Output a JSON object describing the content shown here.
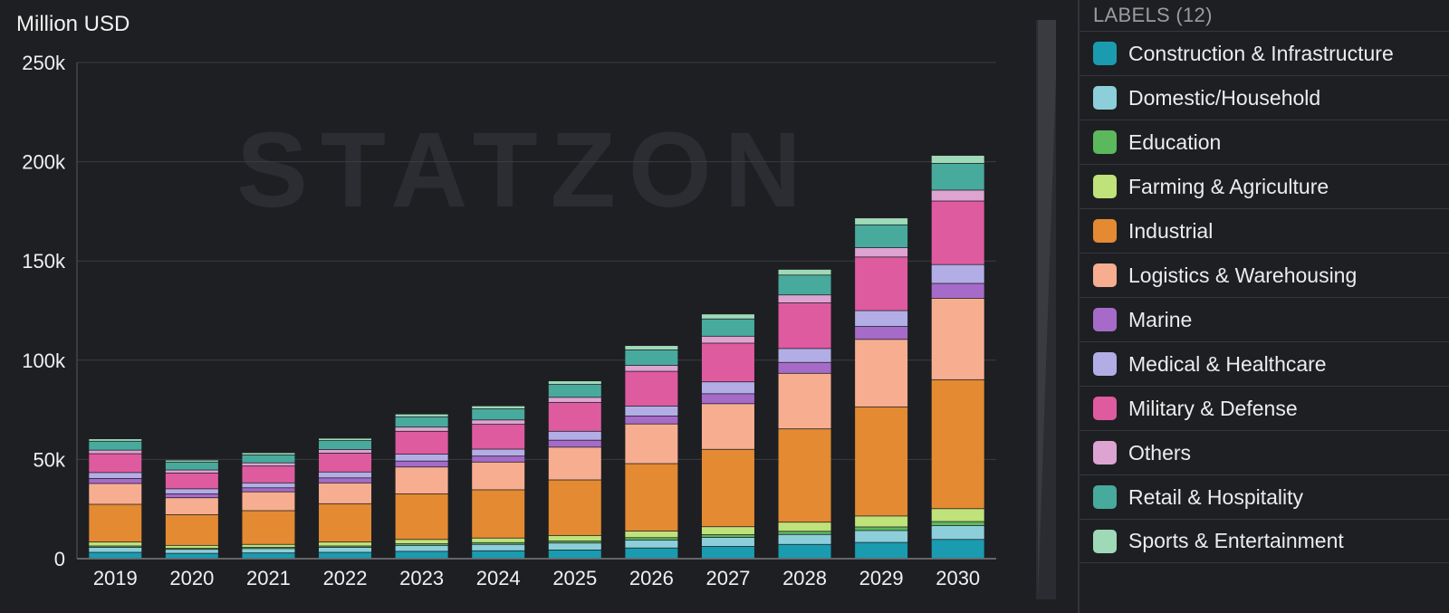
{
  "legend": {
    "title": "LABELS (12)"
  },
  "watermark": "STATZON",
  "chart_data": {
    "type": "bar",
    "stacked": true,
    "ylabel": "Million USD",
    "ylim": [
      0,
      250000
    ],
    "yticks": [
      "0",
      "50k",
      "100k",
      "150k",
      "200k",
      "250k"
    ],
    "ytick_values": [
      0,
      50000,
      100000,
      150000,
      200000,
      250000
    ],
    "categories": [
      "2019",
      "2020",
      "2021",
      "2022",
      "2023",
      "2024",
      "2025",
      "2026",
      "2027",
      "2028",
      "2029",
      "2030"
    ],
    "series": [
      {
        "name": "Construction & Infrastructure",
        "color": "#1a9bb0",
        "values": [
          3000,
          2500,
          2700,
          3000,
          3500,
          3800,
          4200,
          5200,
          6000,
          7000,
          8000,
          9500
        ]
      },
      {
        "name": "Domestic/Household",
        "color": "#8ccfda",
        "values": [
          2500,
          2000,
          2200,
          2500,
          3000,
          3200,
          3500,
          4000,
          4500,
          5000,
          6000,
          7000
        ]
      },
      {
        "name": "Education",
        "color": "#5cb85c",
        "values": [
          700,
          500,
          600,
          700,
          800,
          900,
          1000,
          1200,
          1400,
          1600,
          1800,
          2000
        ]
      },
      {
        "name": "Farming & Agriculture",
        "color": "#bfe27a",
        "values": [
          2000,
          1500,
          1500,
          2000,
          2200,
          2300,
          2800,
          3300,
          4000,
          4600,
          5500,
          6500
        ]
      },
      {
        "name": "Industrial",
        "color": "#e38a33",
        "values": [
          19000,
          15500,
          17000,
          19300,
          23000,
          24300,
          28000,
          34000,
          39000,
          47000,
          55000,
          65000
        ]
      },
      {
        "name": "Logistics & Warehousing",
        "color": "#f7ae90",
        "values": [
          10500,
          8500,
          9500,
          10500,
          13500,
          14000,
          16500,
          20000,
          23000,
          28000,
          34000,
          41000
        ]
      },
      {
        "name": "Marine",
        "color": "#a66bc9",
        "values": [
          2500,
          2000,
          2000,
          2500,
          3000,
          3000,
          3500,
          4000,
          5000,
          5500,
          6500,
          7500
        ]
      },
      {
        "name": "Medical & Healthcare",
        "color": "#b3ade6",
        "values": [
          3000,
          2500,
          2500,
          3000,
          3500,
          3500,
          4500,
          5000,
          6000,
          7000,
          8000,
          9500
        ]
      },
      {
        "name": "Military & Defense",
        "color": "#df5ba0",
        "values": [
          9500,
          8000,
          8500,
          9500,
          11500,
          12500,
          14500,
          17500,
          19500,
          23000,
          27000,
          32000
        ]
      },
      {
        "name": "Others",
        "color": "#dda3d1",
        "values": [
          1800,
          1500,
          1600,
          1800,
          2100,
          2200,
          2600,
          3000,
          3500,
          4000,
          4700,
          5500
        ]
      },
      {
        "name": "Retail & Hospitality",
        "color": "#48aa9c",
        "values": [
          4500,
          4000,
          4000,
          4500,
          5200,
          5600,
          6500,
          7800,
          8700,
          10000,
          11500,
          13500
        ]
      },
      {
        "name": "Sports & Entertainment",
        "color": "#9fd9b8",
        "values": [
          1200,
          1000,
          1100,
          1200,
          1400,
          1500,
          1800,
          2200,
          2500,
          2900,
          3500,
          4000
        ]
      }
    ]
  }
}
